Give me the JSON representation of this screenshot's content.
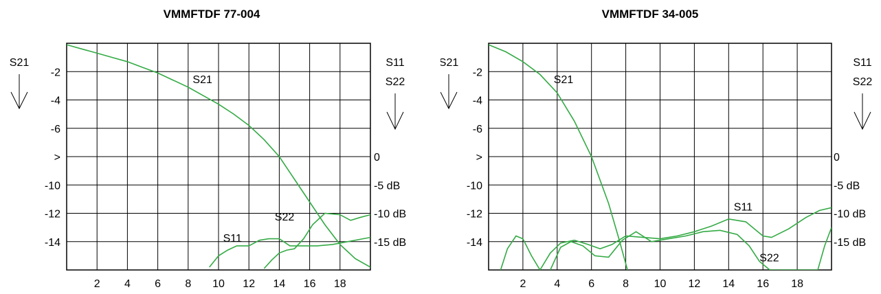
{
  "colors": {
    "trace": "#33aa44",
    "grid": "#000000"
  },
  "chart_data": [
    {
      "type": "line",
      "title": "VMMFTDF 77-004",
      "xticks": [
        "2",
        "4",
        "6",
        "8",
        "10",
        "12",
        "14",
        "16",
        "18"
      ],
      "yticks_left": [
        "-2",
        "-4",
        "-6",
        ">",
        "-10",
        "-12",
        "-14"
      ],
      "yticks_right": [
        "0",
        "-5 dB",
        "-10 dB",
        "-15 dB"
      ],
      "left_axis_label": "S21",
      "right_axis_label": [
        "S11",
        "S22"
      ],
      "xlim": [
        0,
        20
      ],
      "ylim": [
        -16,
        0
      ],
      "grid": true,
      "series": [
        {
          "name": "S21",
          "label_at": [
            8.3,
            -2.8
          ],
          "points": [
            [
              0,
              -0.1
            ],
            [
              1,
              -0.4
            ],
            [
              2,
              -0.7
            ],
            [
              3,
              -1.0
            ],
            [
              4,
              -1.3
            ],
            [
              5,
              -1.7
            ],
            [
              6,
              -2.1
            ],
            [
              7,
              -2.6
            ],
            [
              8,
              -3.1
            ],
            [
              9,
              -3.7
            ],
            [
              10,
              -4.3
            ],
            [
              11,
              -5.0
            ],
            [
              12,
              -5.8
            ],
            [
              13,
              -6.8
            ],
            [
              14,
              -8.0
            ],
            [
              15,
              -9.6
            ],
            [
              16,
              -11.2
            ],
            [
              17,
              -12.8
            ],
            [
              18,
              -14.2
            ],
            [
              19,
              -15.2
            ],
            [
              20,
              -15.8
            ]
          ]
        },
        {
          "name": "S11",
          "label_at": [
            10.3,
            -14.0
          ],
          "points": [
            [
              9.4,
              -15.8
            ],
            [
              10,
              -15.0
            ],
            [
              10.6,
              -14.6
            ],
            [
              11.2,
              -14.3
            ],
            [
              12,
              -14.3
            ],
            [
              12.7,
              -13.9
            ],
            [
              13.3,
              -13.8
            ],
            [
              14,
              -13.8
            ],
            [
              14.7,
              -14.3
            ],
            [
              15.5,
              -14.3
            ],
            [
              16.5,
              -14.3
            ],
            [
              17.5,
              -14.2
            ],
            [
              18.5,
              -14.0
            ],
            [
              19.5,
              -13.8
            ],
            [
              20,
              -13.7
            ]
          ]
        },
        {
          "name": "S22",
          "label_at": [
            13.7,
            -12.5
          ],
          "points": [
            [
              13.0,
              -15.9
            ],
            [
              13.5,
              -15.3
            ],
            [
              14,
              -14.8
            ],
            [
              14.5,
              -14.6
            ],
            [
              15,
              -14.5
            ],
            [
              15.6,
              -13.8
            ],
            [
              16.2,
              -12.8
            ],
            [
              17,
              -12.0
            ],
            [
              18,
              -12.1
            ],
            [
              18.7,
              -12.5
            ],
            [
              19.3,
              -12.3
            ],
            [
              20,
              -12.1
            ]
          ]
        }
      ]
    },
    {
      "type": "line",
      "title": "VMMFTDF 34-005",
      "xticks": [
        "2",
        "4",
        "6",
        "8",
        "10",
        "12",
        "14",
        "16",
        "18"
      ],
      "yticks_left": [
        "-2",
        "-4",
        "-6",
        ">",
        "-10",
        "-12",
        "-14"
      ],
      "yticks_right": [
        "0",
        "-5 dB",
        "-10 dB",
        "-15 dB"
      ],
      "left_axis_label": "S21",
      "right_axis_label": [
        "S11",
        "S22"
      ],
      "xlim": [
        0,
        20
      ],
      "ylim": [
        -16,
        0
      ],
      "grid": true,
      "series": [
        {
          "name": "S21",
          "label_at": [
            3.8,
            -2.8
          ],
          "points": [
            [
              0,
              -0.1
            ],
            [
              1,
              -0.6
            ],
            [
              2,
              -1.3
            ],
            [
              3,
              -2.2
            ],
            [
              4,
              -3.5
            ],
            [
              5,
              -5.5
            ],
            [
              6,
              -8.0
            ],
            [
              7,
              -11.3
            ],
            [
              7.6,
              -13.8
            ],
            [
              8.1,
              -16.0
            ]
          ]
        },
        {
          "name": "S11",
          "label_at": [
            14.3,
            -11.8
          ],
          "points": [
            [
              0.7,
              -16.0
            ],
            [
              1.1,
              -14.5
            ],
            [
              1.6,
              -13.6
            ],
            [
              2.0,
              -13.8
            ],
            [
              2.5,
              -15.0
            ],
            [
              3.0,
              -16.0
            ],
            [
              3.6,
              -14.8
            ],
            [
              4.2,
              -14.1
            ],
            [
              5,
              -13.9
            ],
            [
              5.8,
              -14.2
            ],
            [
              6.5,
              -14.5
            ],
            [
              7.2,
              -14.2
            ],
            [
              8,
              -13.6
            ],
            [
              9,
              -13.7
            ],
            [
              10,
              -13.8
            ],
            [
              11,
              -13.6
            ],
            [
              12,
              -13.3
            ],
            [
              13,
              -12.9
            ],
            [
              14,
              -12.4
            ],
            [
              15,
              -12.6
            ],
            [
              16,
              -13.6
            ],
            [
              16.5,
              -13.7
            ],
            [
              17.5,
              -13.1
            ],
            [
              18.5,
              -12.3
            ],
            [
              19.3,
              -11.8
            ],
            [
              20,
              -11.6
            ]
          ]
        },
        {
          "name": "S22",
          "label_at": [
            15.8,
            -15.4
          ],
          "points": [
            [
              3.6,
              -16.0
            ],
            [
              4.2,
              -14.4
            ],
            [
              4.8,
              -14.0
            ],
            [
              5.5,
              -14.3
            ],
            [
              6.2,
              -15.0
            ],
            [
              7,
              -15.1
            ],
            [
              7.8,
              -13.9
            ],
            [
              8.6,
              -13.3
            ],
            [
              9.5,
              -14.0
            ],
            [
              10.5,
              -13.8
            ],
            [
              11.5,
              -13.6
            ],
            [
              12.5,
              -13.3
            ],
            [
              13.5,
              -13.2
            ],
            [
              14.5,
              -13.5
            ],
            [
              15.2,
              -14.3
            ],
            [
              15.8,
              -15.4
            ],
            [
              16.4,
              -16.0
            ],
            [
              19.2,
              -16.0
            ],
            [
              19.6,
              -14.3
            ],
            [
              20,
              -13.0
            ]
          ]
        }
      ]
    }
  ]
}
